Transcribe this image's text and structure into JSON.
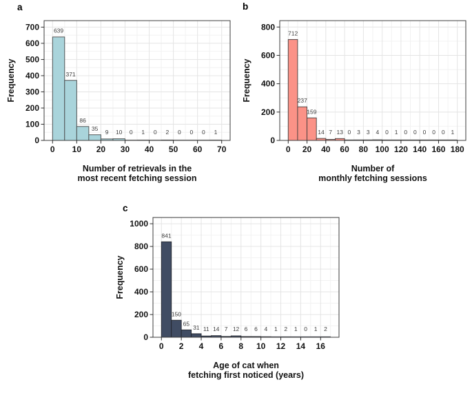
{
  "figure": {
    "description": "Three-panel histogram figure",
    "background": "#ffffff"
  },
  "theme": {
    "grid_major_color": "#e4e4e4",
    "grid_minor_color": "#f2f2f2",
    "panel_border_color": "#3b3b3b",
    "tick_color": "#2b2b2b",
    "tick_label_color": "#111111",
    "axis_title_color": "#111111",
    "value_label_color": "#3d3d3d",
    "panel_background": "#ffffff"
  },
  "chart_data": [
    {
      "type": "bar",
      "subtype": "histogram",
      "panel_label": "a",
      "title": "",
      "ylabel": "Frequency",
      "xlabel_lines": [
        "Number of retrievals in the",
        "most recent fetching session"
      ],
      "bin_start": 0,
      "bin_width": 5,
      "values": [
        639,
        371,
        86,
        35,
        9,
        10,
        0,
        1,
        0,
        2,
        0,
        0,
        0,
        1
      ],
      "x_ticks": [
        0,
        10,
        20,
        30,
        40,
        50,
        60,
        70
      ],
      "y_ticks": [
        0,
        100,
        200,
        300,
        400,
        500,
        600,
        700
      ],
      "xlim": [
        -3.5,
        73.5
      ],
      "ylim": [
        0,
        740
      ],
      "grid": true,
      "legend": "none",
      "bar_fill": "#a9d4db",
      "bar_stroke": "#454545",
      "zero_line_color": "#9a9a9a"
    },
    {
      "type": "bar",
      "subtype": "histogram",
      "panel_label": "b",
      "title": "",
      "ylabel": "Frequency",
      "xlabel_lines": [
        "Number of",
        "monthly fetching sessions"
      ],
      "bin_start": 0,
      "bin_width": 10,
      "values": [
        712,
        237,
        159,
        14,
        7,
        13,
        0,
        3,
        3,
        4,
        0,
        1,
        0,
        0,
        0,
        0,
        0,
        1
      ],
      "x_ticks": [
        0,
        20,
        40,
        60,
        80,
        100,
        120,
        140,
        160,
        180
      ],
      "y_ticks": [
        0,
        200,
        400,
        600,
        800
      ],
      "xlim": [
        -9,
        189
      ],
      "ylim": [
        0,
        845
      ],
      "grid": true,
      "legend": "none",
      "bar_fill": "#fb9287",
      "bar_stroke": "#3d3d3d",
      "zero_line_color": "#3d3d3d"
    },
    {
      "type": "bar",
      "subtype": "histogram",
      "panel_label": "c",
      "title": "",
      "ylabel": "Frequency",
      "xlabel_lines": [
        "Age of cat when",
        "fetching first noticed (years)"
      ],
      "bin_start": 0,
      "bin_width": 1,
      "values": [
        841,
        150,
        65,
        31,
        11,
        14,
        7,
        12,
        6,
        6,
        4,
        1,
        2,
        1,
        0,
        1,
        2
      ],
      "x_ticks": [
        0,
        2,
        4,
        6,
        8,
        10,
        12,
        14,
        16
      ],
      "y_ticks": [
        0,
        200,
        400,
        600,
        800,
        1000
      ],
      "xlim": [
        -0.85,
        17.85
      ],
      "ylim": [
        0,
        1055
      ],
      "grid": true,
      "legend": "none",
      "bar_fill": "#404c63",
      "bar_stroke": "#23262e",
      "zero_line_color": "#3a3f4d"
    }
  ]
}
